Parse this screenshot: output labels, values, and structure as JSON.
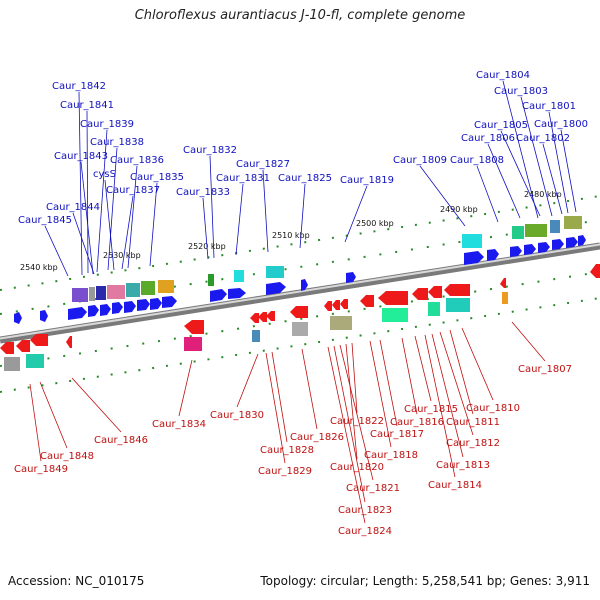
{
  "title": "Chloroflexus aurantiacus J-10-fl, complete genome",
  "footer": {
    "accession": "Accession: NC_010175",
    "topology": "Topology: circular; Length: 5,258,541 bp; Genes: 3,911"
  },
  "colors": {
    "forward_gene": "#1a1aee",
    "reverse_gene": "#ee1a1a",
    "backbone": "#8c8c8c",
    "label_top": "#1010c0",
    "label_bottom": "#c01010",
    "tick": "#2a8a2a"
  },
  "scale_labels": [
    "2540 kbp",
    "2530 kbp",
    "2520 kbp",
    "2510 kbp",
    "2500 kbp",
    "2490 kbp",
    "2480 kbp"
  ],
  "top_labels": [
    {
      "text": "Caur_1842",
      "ax": 82,
      "ay": 275
    },
    {
      "text": "Caur_1841",
      "ax": 88,
      "ay": 273
    },
    {
      "text": "Caur_1839",
      "ax": 97,
      "ay": 272
    },
    {
      "text": "Caur_1838",
      "ax": 108,
      "ay": 270
    },
    {
      "text": "Caur_1843",
      "ax": 93,
      "ay": 274
    },
    {
      "text": "Caur_1836",
      "ax": 128,
      "ay": 268
    },
    {
      "text": "cysS",
      "ax": 114,
      "ay": 270
    },
    {
      "text": "Caur_1837",
      "ax": 122,
      "ay": 269
    },
    {
      "text": "Caur_1835",
      "ax": 150,
      "ay": 266
    },
    {
      "text": "Caur_1844",
      "ax": 94,
      "ay": 274
    },
    {
      "text": "Caur_1845",
      "ax": 68,
      "ay": 276
    },
    {
      "text": "Caur_1832",
      "ax": 214,
      "ay": 258
    },
    {
      "text": "Caur_1831",
      "ax": 236,
      "ay": 255
    },
    {
      "text": "Caur_1833",
      "ax": 208,
      "ay": 259
    },
    {
      "text": "Caur_1827",
      "ax": 268,
      "ay": 252
    },
    {
      "text": "Caur_1825",
      "ax": 300,
      "ay": 248
    },
    {
      "text": "Caur_1819",
      "ax": 345,
      "ay": 242
    },
    {
      "text": "Caur_1809",
      "ax": 465,
      "ay": 226
    },
    {
      "text": "Caur_1808",
      "ax": 498,
      "ay": 222
    },
    {
      "text": "Caur_1806",
      "ax": 520,
      "ay": 218
    },
    {
      "text": "Caur_1805",
      "ax": 540,
      "ay": 216
    },
    {
      "text": "Caur_1804",
      "ax": 538,
      "ay": 218
    },
    {
      "text": "Caur_1803",
      "ax": 552,
      "ay": 216
    },
    {
      "text": "Caur_1802",
      "ax": 562,
      "ay": 214
    },
    {
      "text": "Caur_1801",
      "ax": 568,
      "ay": 213
    },
    {
      "text": "Caur_1800",
      "ax": 576,
      "ay": 212
    }
  ],
  "bottom_labels": [
    {
      "text": "Caur_1807",
      "ax": 512,
      "ay": 322
    },
    {
      "text": "Caur_1810",
      "ax": 462,
      "ay": 328
    },
    {
      "text": "Caur_1811",
      "ax": 450,
      "ay": 330
    },
    {
      "text": "Caur_1812",
      "ax": 440,
      "ay": 332
    },
    {
      "text": "Caur_1813",
      "ax": 432,
      "ay": 334
    },
    {
      "text": "Caur_1814",
      "ax": 425,
      "ay": 335
    },
    {
      "text": "Caur_1815",
      "ax": 415,
      "ay": 336
    },
    {
      "text": "Caur_1816",
      "ax": 402,
      "ay": 338
    },
    {
      "text": "Caur_1817",
      "ax": 380,
      "ay": 340
    },
    {
      "text": "Caur_1818",
      "ax": 370,
      "ay": 341
    },
    {
      "text": "Caur_1822",
      "ax": 352,
      "ay": 343
    },
    {
      "text": "Caur_1820",
      "ax": 346,
      "ay": 344
    },
    {
      "text": "Caur_1821",
      "ax": 340,
      "ay": 345
    },
    {
      "text": "Caur_1823",
      "ax": 334,
      "ay": 346
    },
    {
      "text": "Caur_1824",
      "ax": 328,
      "ay": 347
    },
    {
      "text": "Caur_1826",
      "ax": 302,
      "ay": 349
    },
    {
      "text": "Caur_1828",
      "ax": 272,
      "ay": 352
    },
    {
      "text": "Caur_1829",
      "ax": 266,
      "ay": 353
    },
    {
      "text": "Caur_1830",
      "ax": 258,
      "ay": 354
    },
    {
      "text": "Caur_1834",
      "ax": 192,
      "ay": 360
    },
    {
      "text": "Caur_1846",
      "ax": 72,
      "ay": 378
    },
    {
      "text": "Caur_1848",
      "ax": 40,
      "ay": 382
    },
    {
      "text": "Caur_1849",
      "ax": 30,
      "ay": 384
    }
  ]
}
